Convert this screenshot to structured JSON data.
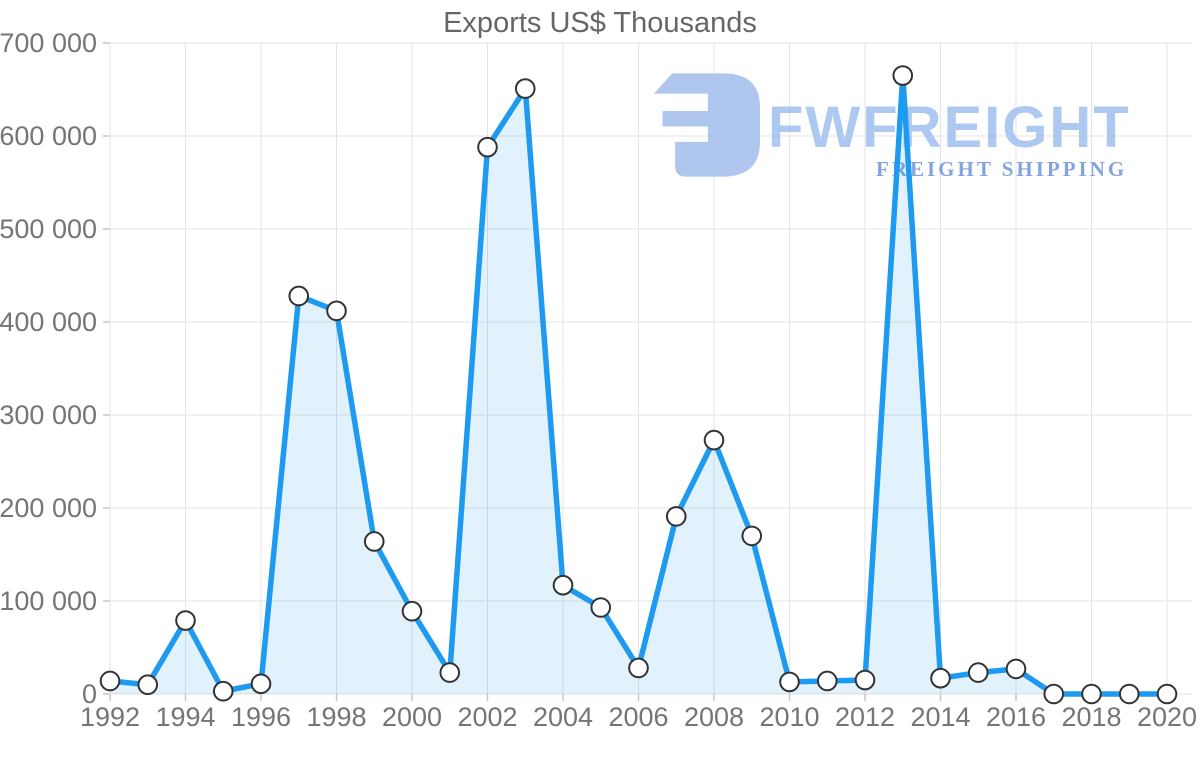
{
  "chart_data": {
    "type": "area",
    "title": "Exports US$ Thousands",
    "xlabel": "",
    "ylabel": "",
    "x": [
      1992,
      1993,
      1994,
      1995,
      1996,
      1997,
      1998,
      1999,
      2000,
      2001,
      2002,
      2003,
      2004,
      2005,
      2006,
      2007,
      2008,
      2009,
      2010,
      2011,
      2012,
      2013,
      2014,
      2015,
      2016,
      2017,
      2018,
      2019,
      2020
    ],
    "values": [
      14000,
      10000,
      79000,
      3000,
      11000,
      428000,
      412000,
      164000,
      89000,
      23000,
      588000,
      651000,
      117000,
      93000,
      28000,
      191000,
      273000,
      170000,
      13000,
      14000,
      15000,
      665000,
      17000,
      23000,
      27000,
      0,
      0,
      0,
      0
    ],
    "ylim": [
      0,
      700000
    ],
    "yticks": [
      0,
      100000,
      200000,
      300000,
      400000,
      500000,
      600000,
      700000
    ],
    "xticks": [
      1992,
      1994,
      1996,
      1998,
      2000,
      2002,
      2004,
      2006,
      2008,
      2010,
      2012,
      2014,
      2016,
      2018,
      2020
    ],
    "grid": true,
    "legend": "none",
    "colors": {
      "line": "#1E9BF0",
      "fill": "rgba(30,155,240,0.13)",
      "marker_fill": "#ffffff",
      "marker_stroke": "#333333",
      "gridline": "#e3e3e3",
      "tick": "#c6c6c6",
      "axis_text": "#757575",
      "title_text": "#666666"
    }
  },
  "logo": {
    "brand": "FWFREIGHT",
    "tagline": "FREIGHT SHIPPING",
    "brand_color": "#a8c5f0",
    "tagline_color": "#7fa0dc",
    "icon_color": "#a9c3ee",
    "icon": "fwfreight-mark-icon"
  }
}
